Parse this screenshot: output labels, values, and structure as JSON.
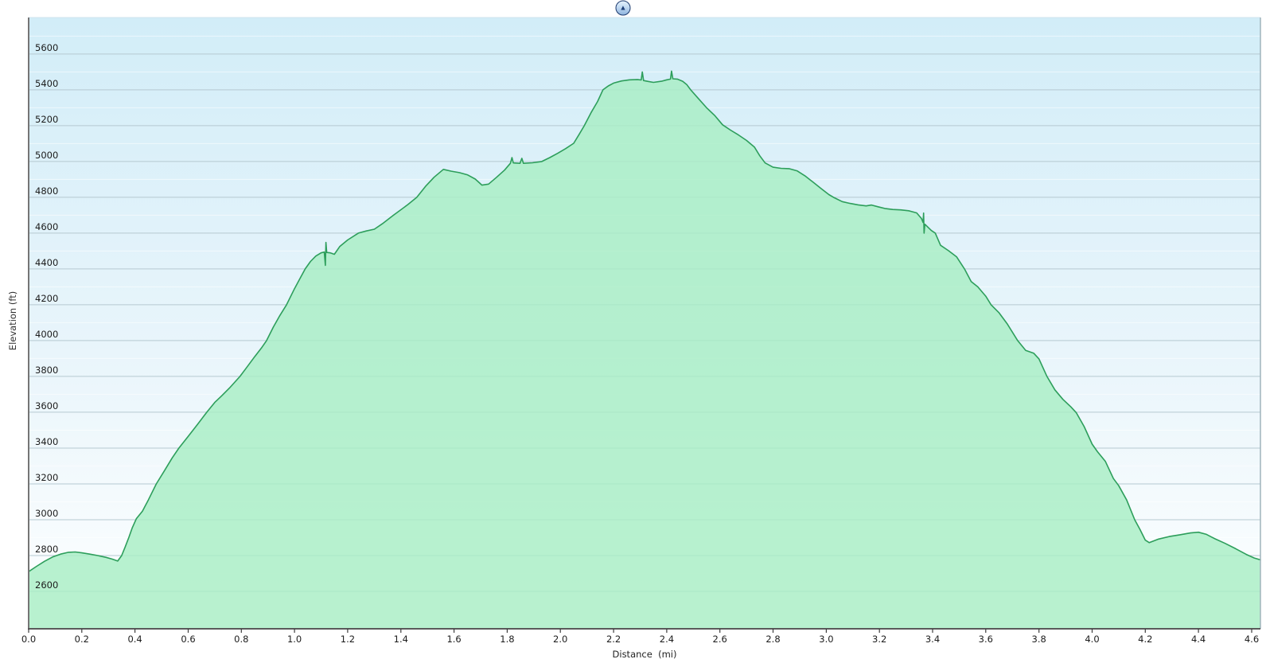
{
  "panel": {
    "collapse_icon": "▲"
  },
  "chart_data": {
    "type": "area",
    "title": "",
    "xlabel": "Distance  (mi)",
    "ylabel": "Elevation (ft)",
    "xlim": [
      0,
      4.633
    ],
    "ylim": [
      2391,
      5804
    ],
    "grid": true,
    "legend": "none",
    "x_tick_values": [
      0.0,
      0.2,
      0.4,
      0.6,
      0.8,
      1.0,
      1.2,
      1.4,
      1.6,
      1.8,
      2.0,
      2.2,
      2.4,
      2.6,
      2.8,
      3.0,
      3.2,
      3.4,
      3.6,
      3.8,
      4.0,
      4.2,
      4.4,
      4.6
    ],
    "x_tick_labels": [
      "0.0",
      "0.2",
      "0.4",
      "0.6",
      "0.8",
      "1.0",
      "1.2",
      "1.4",
      "1.6",
      "1.8",
      "2.0",
      "2.2",
      "2.4",
      "2.6",
      "2.8",
      "3.0",
      "3.2",
      "3.4",
      "3.6",
      "3.8",
      "4.0",
      "4.2",
      "4.4",
      "4.6"
    ],
    "y_tick_values": [
      2600,
      2800,
      3000,
      3200,
      3400,
      3600,
      3800,
      4000,
      4200,
      4400,
      4600,
      4800,
      5000,
      5200,
      5400,
      5600
    ],
    "y_tick_labels": [
      "2600",
      "2800",
      "3000",
      "3200",
      "3400",
      "3600",
      "3800",
      "4000",
      "4200",
      "4400",
      "4600",
      "4800",
      "5000",
      "5200",
      "5400",
      "5600"
    ],
    "y_minor_tick_values": [
      2500,
      2700,
      2900,
      3100,
      3300,
      3500,
      3700,
      3900,
      4100,
      4300,
      4500,
      4700,
      4900,
      5100,
      5300,
      5500,
      5700
    ],
    "colors": {
      "page_bg": "#ffffff",
      "plot_bg_top": "#d2edf8",
      "plot_bg_mid": "#e9f5fb",
      "plot_bg_bottom": "#feffff",
      "grid_major": "#b6c9d1",
      "grid_minor": "rgba(255,255,255,0.55)",
      "area_fill": "rgba(168,238,196,0.82)",
      "area_stroke": "#2d9e5b",
      "axis_left": "#757575",
      "axis_bottom": "#5a5a5a",
      "border_right": "#9fb4bc",
      "border_top": "#cfe4ee",
      "tick_color": "#3c3c3c",
      "label_color": "#1c1c1c",
      "button_border": "#1d3a6e",
      "button_glyph": "#1d3f78"
    },
    "series": [
      {
        "name": "elevation-profile",
        "points": [
          [
            0.0,
            2710
          ],
          [
            0.03,
            2740
          ],
          [
            0.06,
            2768
          ],
          [
            0.09,
            2792
          ],
          [
            0.12,
            2808
          ],
          [
            0.15,
            2818
          ],
          [
            0.175,
            2820
          ],
          [
            0.2,
            2815
          ],
          [
            0.23,
            2808
          ],
          [
            0.26,
            2800
          ],
          [
            0.29,
            2790
          ],
          [
            0.315,
            2780
          ],
          [
            0.335,
            2769
          ],
          [
            0.35,
            2800
          ],
          [
            0.363,
            2848
          ],
          [
            0.377,
            2902
          ],
          [
            0.39,
            2956
          ],
          [
            0.405,
            3005
          ],
          [
            0.428,
            3048
          ],
          [
            0.45,
            3110
          ],
          [
            0.48,
            3200
          ],
          [
            0.51,
            3272
          ],
          [
            0.54,
            3345
          ],
          [
            0.565,
            3400
          ],
          [
            0.6,
            3465
          ],
          [
            0.635,
            3532
          ],
          [
            0.67,
            3600
          ],
          [
            0.7,
            3655
          ],
          [
            0.725,
            3690
          ],
          [
            0.755,
            3735
          ],
          [
            0.795,
            3800
          ],
          [
            0.82,
            3850
          ],
          [
            0.85,
            3910
          ],
          [
            0.875,
            3958
          ],
          [
            0.895,
            4000
          ],
          [
            0.92,
            4075
          ],
          [
            0.945,
            4140
          ],
          [
            0.97,
            4200
          ],
          [
            1.0,
            4290
          ],
          [
            1.02,
            4345
          ],
          [
            1.04,
            4400
          ],
          [
            1.06,
            4442
          ],
          [
            1.08,
            4472
          ],
          [
            1.1,
            4490
          ],
          [
            1.112,
            4495
          ],
          [
            1.116,
            4420
          ],
          [
            1.118,
            4548
          ],
          [
            1.121,
            4492
          ],
          [
            1.135,
            4490
          ],
          [
            1.15,
            4482
          ],
          [
            1.17,
            4525
          ],
          [
            1.2,
            4562
          ],
          [
            1.24,
            4600
          ],
          [
            1.27,
            4612
          ],
          [
            1.3,
            4622
          ],
          [
            1.33,
            4652
          ],
          [
            1.37,
            4698
          ],
          [
            1.425,
            4758
          ],
          [
            1.46,
            4800
          ],
          [
            1.495,
            4865
          ],
          [
            1.525,
            4912
          ],
          [
            1.56,
            4956
          ],
          [
            1.59,
            4946
          ],
          [
            1.62,
            4938
          ],
          [
            1.65,
            4926
          ],
          [
            1.68,
            4902
          ],
          [
            1.705,
            4868
          ],
          [
            1.73,
            4874
          ],
          [
            1.76,
            4912
          ],
          [
            1.79,
            4952
          ],
          [
            1.812,
            4990
          ],
          [
            1.818,
            5022
          ],
          [
            1.823,
            4992
          ],
          [
            1.848,
            4990
          ],
          [
            1.855,
            5018
          ],
          [
            1.861,
            4990
          ],
          [
            1.895,
            4993
          ],
          [
            1.93,
            5000
          ],
          [
            1.96,
            5022
          ],
          [
            1.99,
            5046
          ],
          [
            2.02,
            5072
          ],
          [
            2.05,
            5102
          ],
          [
            2.07,
            5150
          ],
          [
            2.09,
            5200
          ],
          [
            2.115,
            5272
          ],
          [
            2.14,
            5335
          ],
          [
            2.16,
            5400
          ],
          [
            2.18,
            5422
          ],
          [
            2.2,
            5438
          ],
          [
            2.23,
            5450
          ],
          [
            2.26,
            5456
          ],
          [
            2.29,
            5458
          ],
          [
            2.304,
            5455
          ],
          [
            2.308,
            5500
          ],
          [
            2.313,
            5452
          ],
          [
            2.33,
            5447
          ],
          [
            2.35,
            5442
          ],
          [
            2.38,
            5448
          ],
          [
            2.4,
            5456
          ],
          [
            2.414,
            5460
          ],
          [
            2.418,
            5505
          ],
          [
            2.423,
            5462
          ],
          [
            2.44,
            5460
          ],
          [
            2.46,
            5448
          ],
          [
            2.475,
            5430
          ],
          [
            2.49,
            5400
          ],
          [
            2.52,
            5350
          ],
          [
            2.55,
            5300
          ],
          [
            2.58,
            5258
          ],
          [
            2.61,
            5205
          ],
          [
            2.64,
            5175
          ],
          [
            2.67,
            5148
          ],
          [
            2.7,
            5118
          ],
          [
            2.73,
            5080
          ],
          [
            2.75,
            5032
          ],
          [
            2.77,
            4992
          ],
          [
            2.8,
            4968
          ],
          [
            2.83,
            4962
          ],
          [
            2.86,
            4960
          ],
          [
            2.89,
            4948
          ],
          [
            2.92,
            4920
          ],
          [
            2.95,
            4885
          ],
          [
            2.98,
            4850
          ],
          [
            3.01,
            4815
          ],
          [
            3.03,
            4798
          ],
          [
            3.06,
            4776
          ],
          [
            3.09,
            4766
          ],
          [
            3.12,
            4758
          ],
          [
            3.15,
            4752
          ],
          [
            3.17,
            4757
          ],
          [
            3.195,
            4747
          ],
          [
            3.22,
            4738
          ],
          [
            3.25,
            4732
          ],
          [
            3.28,
            4730
          ],
          [
            3.31,
            4725
          ],
          [
            3.34,
            4713
          ],
          [
            3.358,
            4682
          ],
          [
            3.364,
            4660
          ],
          [
            3.366,
            4712
          ],
          [
            3.368,
            4600
          ],
          [
            3.371,
            4650
          ],
          [
            3.395,
            4615
          ],
          [
            3.41,
            4600
          ],
          [
            3.43,
            4532
          ],
          [
            3.46,
            4502
          ],
          [
            3.49,
            4468
          ],
          [
            3.52,
            4400
          ],
          [
            3.545,
            4330
          ],
          [
            3.57,
            4300
          ],
          [
            3.6,
            4248
          ],
          [
            3.62,
            4200
          ],
          [
            3.65,
            4155
          ],
          [
            3.68,
            4095
          ],
          [
            3.72,
            4000
          ],
          [
            3.75,
            3945
          ],
          [
            3.78,
            3930
          ],
          [
            3.8,
            3898
          ],
          [
            3.83,
            3800
          ],
          [
            3.86,
            3725
          ],
          [
            3.89,
            3672
          ],
          [
            3.92,
            3630
          ],
          [
            3.94,
            3598
          ],
          [
            3.97,
            3520
          ],
          [
            4.0,
            3422
          ],
          [
            4.02,
            3380
          ],
          [
            4.05,
            3325
          ],
          [
            4.08,
            3230
          ],
          [
            4.1,
            3190
          ],
          [
            4.13,
            3110
          ],
          [
            4.16,
            3000
          ],
          [
            4.18,
            2946
          ],
          [
            4.2,
            2886
          ],
          [
            4.215,
            2872
          ],
          [
            4.25,
            2892
          ],
          [
            4.29,
            2906
          ],
          [
            4.33,
            2916
          ],
          [
            4.37,
            2926
          ],
          [
            4.4,
            2930
          ],
          [
            4.43,
            2918
          ],
          [
            4.46,
            2895
          ],
          [
            4.5,
            2868
          ],
          [
            4.54,
            2838
          ],
          [
            4.58,
            2806
          ],
          [
            4.61,
            2786
          ],
          [
            4.633,
            2776
          ]
        ]
      }
    ]
  }
}
